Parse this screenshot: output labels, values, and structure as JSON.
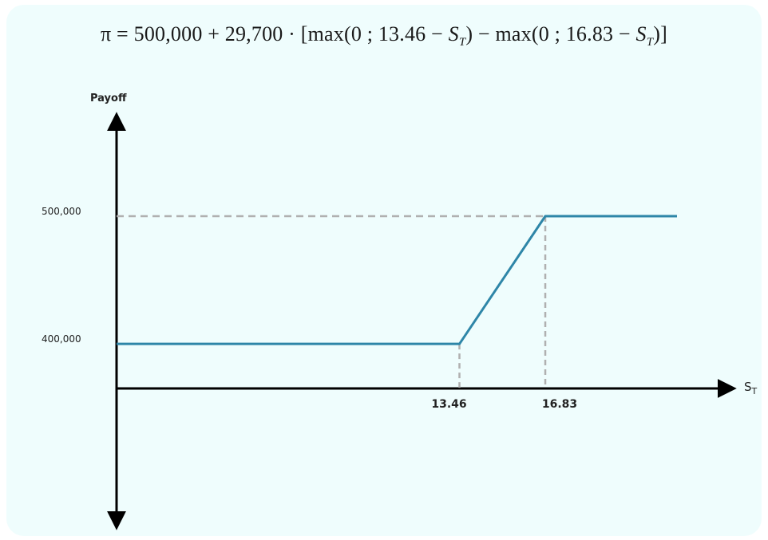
{
  "chart_data": {
    "type": "line",
    "title": "π = 500,000 + 29,700 · [max(0 ; 13.46 − S_T) − max(0 ; 16.83 − S_T)]",
    "xlabel": "S",
    "xlabel_sub": "T",
    "ylabel": "Payoff",
    "y_tick_labels": [
      "500,000",
      "400,000"
    ],
    "y_ticks": [
      500000,
      400000
    ],
    "x_tick_labels": [
      "13.46",
      "16.83"
    ],
    "x_ticks": [
      13.46,
      16.83
    ],
    "xlim": [
      0,
      22
    ],
    "ylim": [
      330000,
      560000
    ],
    "grid": false,
    "series": [
      {
        "color": "#2e86a8",
        "x": [
          0,
          13.46,
          16.83,
          22
        ],
        "y": [
          399900,
          399900,
          500000,
          500000
        ]
      }
    ],
    "guide_color": "#b0b0b0"
  }
}
